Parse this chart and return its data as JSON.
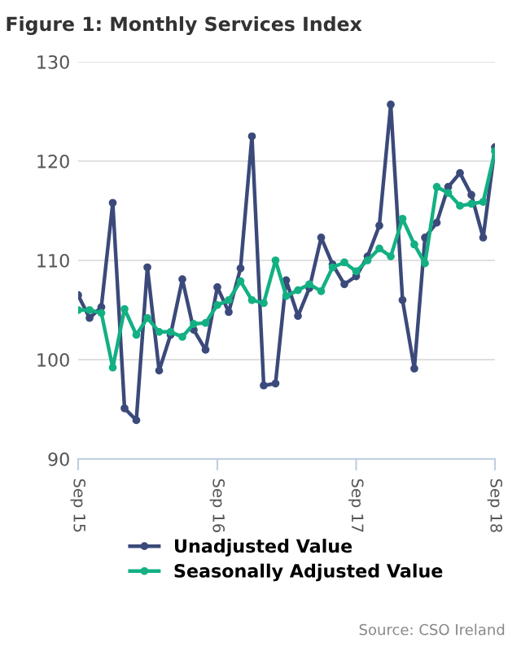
{
  "chart_data": {
    "type": "line",
    "title": "Figure 1: Monthly Services Index",
    "x": [
      "2015-09",
      "2015-10",
      "2015-11",
      "2015-12",
      "2016-01",
      "2016-02",
      "2016-03",
      "2016-04",
      "2016-05",
      "2016-06",
      "2016-07",
      "2016-08",
      "2016-09",
      "2016-10",
      "2016-11",
      "2016-12",
      "2017-01",
      "2017-02",
      "2017-03",
      "2017-04",
      "2017-05",
      "2017-06",
      "2017-07",
      "2017-08",
      "2017-09",
      "2017-10",
      "2017-11",
      "2017-12",
      "2018-01",
      "2018-02",
      "2018-03",
      "2018-04",
      "2018-05",
      "2018-06",
      "2018-07",
      "2018-08",
      "2018-09"
    ],
    "series": [
      {
        "name": "Unadjusted Value",
        "color": "#3b4a7a",
        "marker": "circle",
        "values": [
          106.5,
          104.2,
          105.3,
          115.8,
          95.1,
          93.9,
          109.3,
          98.9,
          102.5,
          108.1,
          103.0,
          101.0,
          107.3,
          104.8,
          109.2,
          122.5,
          97.4,
          97.6,
          108.0,
          104.4,
          107.2,
          112.3,
          109.6,
          107.6,
          108.4,
          110.4,
          113.5,
          125.7,
          106.0,
          99.1,
          112.3,
          113.8,
          117.4,
          118.8,
          116.6,
          112.3,
          121.4
        ]
      },
      {
        "name": "Seasonally Adjusted Value",
        "color": "#13b083",
        "marker": "circle",
        "values": [
          105.0,
          105.0,
          104.7,
          99.2,
          105.1,
          102.5,
          104.2,
          102.8,
          102.8,
          102.3,
          103.6,
          103.7,
          105.5,
          106.0,
          107.9,
          106.0,
          105.7,
          110.0,
          106.4,
          107.0,
          107.6,
          106.9,
          109.3,
          109.8,
          108.9,
          110.0,
          111.2,
          110.4,
          114.2,
          111.6,
          109.7,
          117.4,
          116.8,
          115.5,
          115.7,
          115.9,
          121.0
        ]
      }
    ],
    "xlim": [
      "2015-09",
      "2018-09"
    ],
    "xticks": [
      {
        "value": "2015-09",
        "label": "Sep 15"
      },
      {
        "value": "2016-09",
        "label": "Sep 16"
      },
      {
        "value": "2017-09",
        "label": "Sep 17"
      },
      {
        "value": "2018-09",
        "label": "Sep 18"
      }
    ],
    "ylim": [
      90,
      130
    ],
    "yticks": [
      90,
      100,
      110,
      120,
      130
    ],
    "grid": "y",
    "legend": "bottom",
    "line_style": "solid",
    "annotations": [
      "Source: CSO Ireland"
    ]
  }
}
